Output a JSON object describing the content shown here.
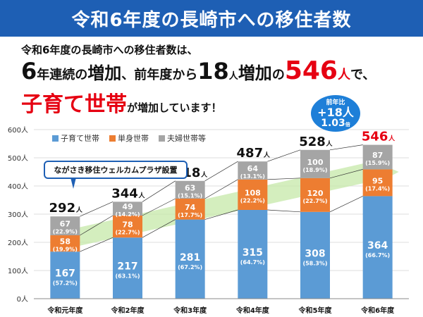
{
  "header": {
    "title": "令和6年度の長崎市への移住者数"
  },
  "summary": {
    "line1": "令和6年度の長崎市への移住者数は、",
    "l2_a": "6",
    "l2_b": "年連続の",
    "l2_c": "増加",
    "l2_d": "、前年度から",
    "l2_e": "18",
    "l2_f": "人",
    "l2_g": "増加",
    "l2_h": "の",
    "l2_i": "546",
    "l2_j": "人",
    "l2_k": "で、",
    "l3_a": "子育て世帯",
    "l3_b": "が増加しています！"
  },
  "bubble": {
    "caption": "前年比",
    "increase": "+18人",
    "ratio": "1.03",
    "ratio_unit": "倍"
  },
  "callout": {
    "text": "ながさき移住ウェルカムプラザ設置"
  },
  "colors": {
    "child": "#5b9bd5",
    "single": "#ed7d31",
    "couple": "#a5a5a5",
    "header": "#1e5fb4",
    "accent": "#e60012",
    "arrow": "#c6e8a8"
  },
  "chart_data": {
    "type": "bar",
    "stacked": true,
    "categories": [
      "令和元年度",
      "令和2年度",
      "令和3年度",
      "令和4年度",
      "令和5年度",
      "令和6年度"
    ],
    "series": [
      {
        "name": "子育て世帯",
        "values": [
          167,
          217,
          281,
          315,
          308,
          364
        ],
        "shares": [
          "(57.2%)",
          "(63.1%)",
          "(67.2%)",
          "(64.7%)",
          "(58.3%)",
          "(66.7%)"
        ]
      },
      {
        "name": "単身世帯",
        "values": [
          58,
          78,
          74,
          108,
          120,
          95
        ],
        "shares": [
          "(19.9%)",
          "(22.7%)",
          "(17.7%)",
          "(22.2%)",
          "(22.7%)",
          "(17.4%)"
        ]
      },
      {
        "name": "夫婦世帯等",
        "values": [
          67,
          49,
          63,
          64,
          100,
          87
        ],
        "shares": [
          "(22.9%)",
          "(14.2%)",
          "(15.1%)",
          "(13.1%)",
          "(18.9%)",
          "(15.9%)"
        ]
      }
    ],
    "totals": [
      292,
      344,
      418,
      487,
      528,
      546
    ],
    "total_unit": "人",
    "yticks": [
      "0人",
      "100人",
      "200人",
      "300人",
      "400人",
      "500人",
      "600人"
    ],
    "ylim": [
      0,
      600
    ],
    "legend_position": "top-left"
  }
}
